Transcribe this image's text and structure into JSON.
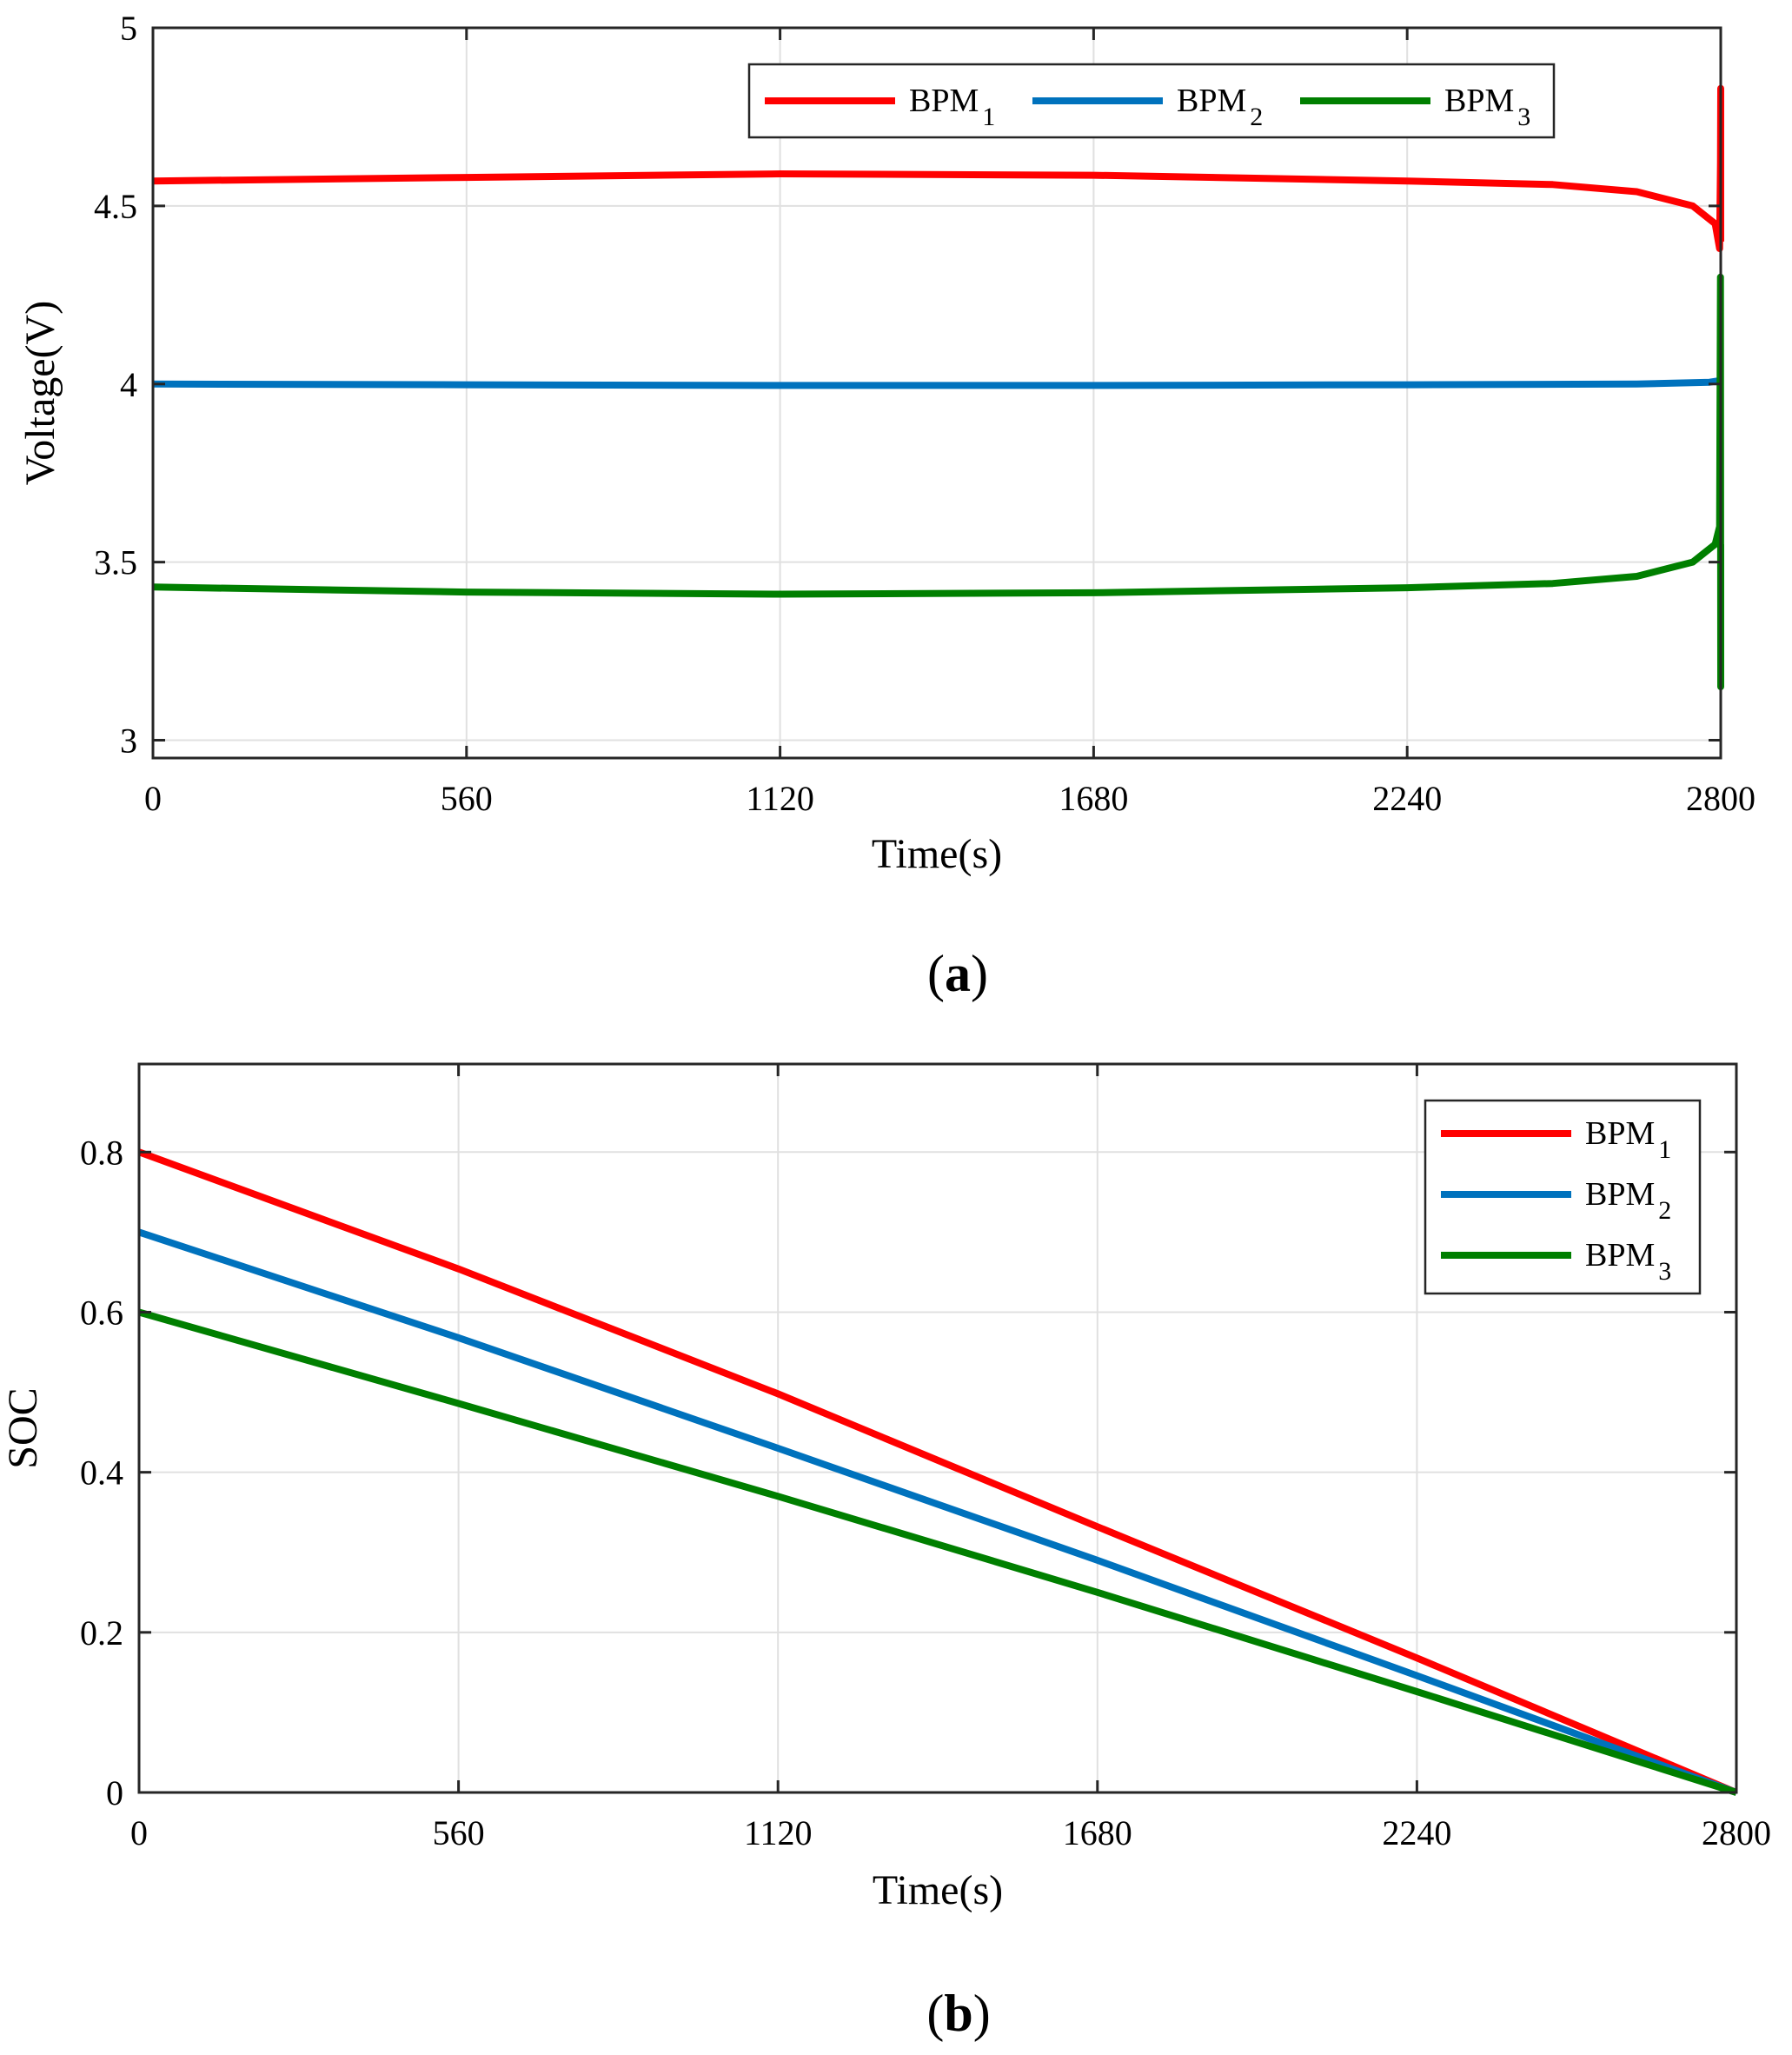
{
  "chart_data": [
    {
      "type": "line",
      "caption": {
        "open": "(",
        "letter": "a",
        "close": ")"
      },
      "title": "",
      "xlabel": "Time(s)",
      "ylabel": "Voltage(V)",
      "xlim": [
        0,
        2800
      ],
      "ylim": [
        2.95,
        5.0
      ],
      "xticks": [
        0,
        560,
        1120,
        1680,
        2240,
        2800
      ],
      "yticks": [
        3,
        3.5,
        4,
        4.5,
        5
      ],
      "xtick_labels": [
        "0",
        "560",
        "1120",
        "1680",
        "2240",
        "2800"
      ],
      "ytick_labels": [
        "3",
        "3.5",
        "4",
        "4.5",
        "5"
      ],
      "grid": true,
      "legend_position": "top-right, horizontal",
      "series": [
        {
          "name": "BPM",
          "sub": "1",
          "color": "#ff0000",
          "x": [
            0,
            560,
            1120,
            1680,
            2240,
            2500,
            2650,
            2750,
            2790,
            2798,
            2799.5,
            2800,
            2800
          ],
          "y": [
            4.57,
            4.58,
            4.59,
            4.586,
            4.57,
            4.56,
            4.54,
            4.5,
            4.45,
            4.38,
            4.62,
            4.83,
            4.4
          ]
        },
        {
          "name": "BPM",
          "sub": "2",
          "color": "#0072bd",
          "x": [
            0,
            560,
            1120,
            1680,
            2240,
            2650,
            2780,
            2800
          ],
          "y": [
            4.0,
            3.998,
            3.996,
            3.996,
            3.998,
            4.0,
            4.005,
            4.01
          ]
        },
        {
          "name": "BPM",
          "sub": "3",
          "color": "#007f00",
          "x": [
            0,
            560,
            1120,
            1680,
            2240,
            2500,
            2650,
            2750,
            2790,
            2798,
            2799.5,
            2800,
            2800
          ],
          "y": [
            3.43,
            3.416,
            3.41,
            3.414,
            3.428,
            3.44,
            3.46,
            3.5,
            3.55,
            3.6,
            4.3,
            3.15,
            3.55
          ]
        }
      ]
    },
    {
      "type": "line",
      "caption": {
        "open": "(",
        "letter": "b",
        "close": ")"
      },
      "title": "",
      "xlabel": "Time(s)",
      "ylabel": "SOC",
      "xlim": [
        0,
        2800
      ],
      "ylim": [
        0,
        0.91
      ],
      "xticks": [
        0,
        560,
        1120,
        1680,
        2240,
        2800
      ],
      "yticks": [
        0,
        0.2,
        0.4,
        0.6,
        0.8
      ],
      "xtick_labels": [
        "0",
        "560",
        "1120",
        "1680",
        "2240",
        "2800"
      ],
      "ytick_labels": [
        "0",
        "0.2",
        "0.4",
        "0.6",
        "0.8"
      ],
      "grid": true,
      "legend_position": "top-right, vertical",
      "series": [
        {
          "name": "BPM",
          "sub": "1",
          "color": "#ff0000",
          "x": [
            0,
            560,
            1120,
            1680,
            2240,
            2800
          ],
          "y": [
            0.8,
            0.654,
            0.498,
            0.332,
            0.168,
            0.0
          ]
        },
        {
          "name": "BPM",
          "sub": "2",
          "color": "#0072bd",
          "x": [
            0,
            560,
            1120,
            1680,
            2240,
            2800
          ],
          "y": [
            0.7,
            0.568,
            0.43,
            0.29,
            0.146,
            0.0
          ]
        },
        {
          "name": "BPM",
          "sub": "3",
          "color": "#007f00",
          "x": [
            0,
            560,
            1120,
            1680,
            2240,
            2800
          ],
          "y": [
            0.6,
            0.486,
            0.37,
            0.25,
            0.126,
            0.0
          ]
        }
      ]
    }
  ]
}
